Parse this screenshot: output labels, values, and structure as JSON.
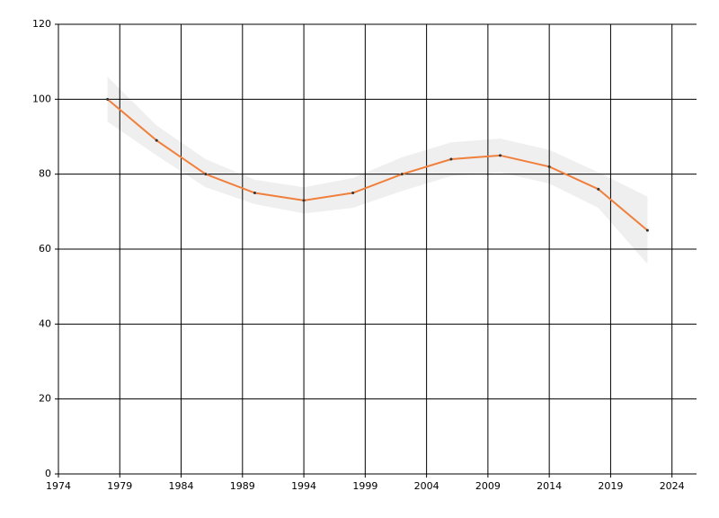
{
  "chart_data": {
    "type": "line",
    "x": [
      1978,
      1982,
      1986,
      1990,
      1994,
      1998,
      2002,
      2006,
      2010,
      2014,
      2018,
      2022
    ],
    "series": [
      {
        "color": "#f07f3c",
        "values": [
          100,
          89,
          80,
          75,
          73,
          75,
          80,
          84,
          85,
          82,
          76,
          65
        ]
      }
    ],
    "band": {
      "color": "#efefef",
      "lower": [
        94,
        85,
        76.5,
        72,
        69.5,
        71,
        75.5,
        79.5,
        80.5,
        77.5,
        71,
        56
      ],
      "upper": [
        106,
        93,
        84,
        78.5,
        76.5,
        79,
        84.5,
        88.5,
        89.5,
        86.5,
        80.5,
        74
      ]
    },
    "xlim": [
      1974,
      2026
    ],
    "xticks": [
      1974,
      1979,
      1984,
      1989,
      1994,
      1999,
      2004,
      2009,
      2014,
      2019,
      2024
    ],
    "ylim": [
      0,
      120
    ],
    "yticks": [
      0,
      20,
      40,
      60,
      80,
      100,
      120
    ],
    "grid": true
  }
}
